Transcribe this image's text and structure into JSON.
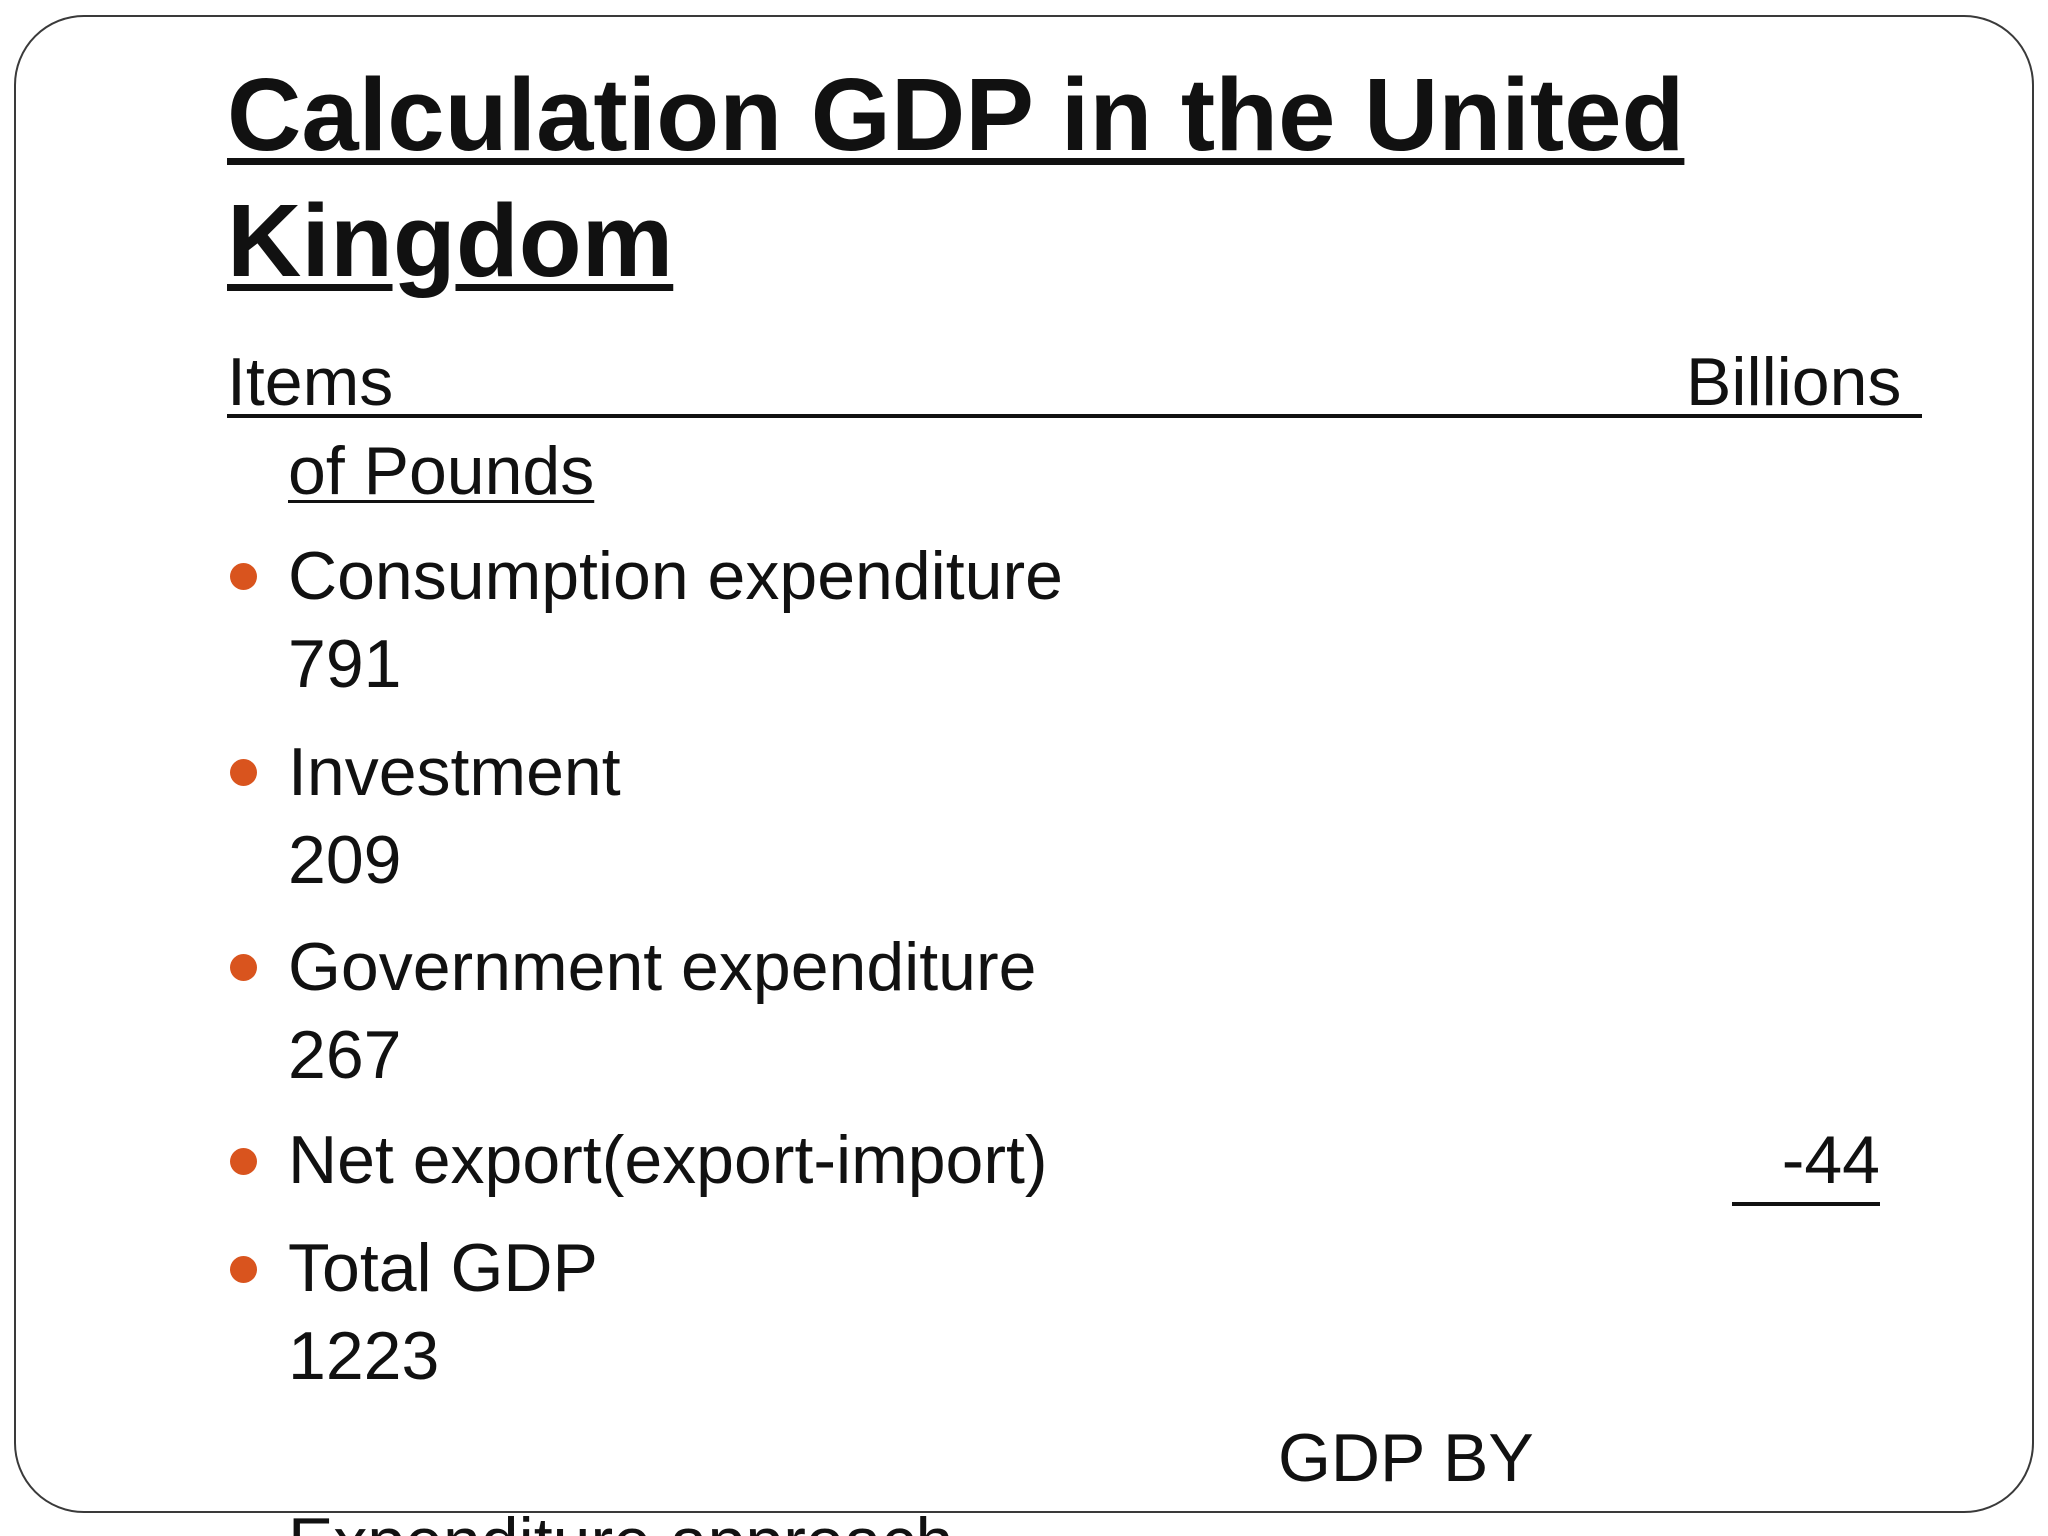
{
  "slide": {
    "title": "Calculation GDP in the United Kingdom",
    "header": {
      "items_label": "Items",
      "billions_label": "Billions",
      "pounds_label": "of Pounds"
    },
    "items": [
      {
        "label": "Consumption expenditure",
        "value": "791"
      },
      {
        "label": "Investment",
        "value": "209"
      },
      {
        "label": "Government expenditure",
        "value": "267"
      },
      {
        "label": "Net export(export-import)",
        "value": "-44"
      },
      {
        "label": "Total GDP",
        "value": "1223"
      }
    ],
    "footer": {
      "gdp_by": "GDP BY",
      "approach": "Expenditure approach"
    },
    "colors": {
      "bullet": "#d9541e",
      "text": "#111111",
      "frame": "#3a3a3a"
    }
  }
}
